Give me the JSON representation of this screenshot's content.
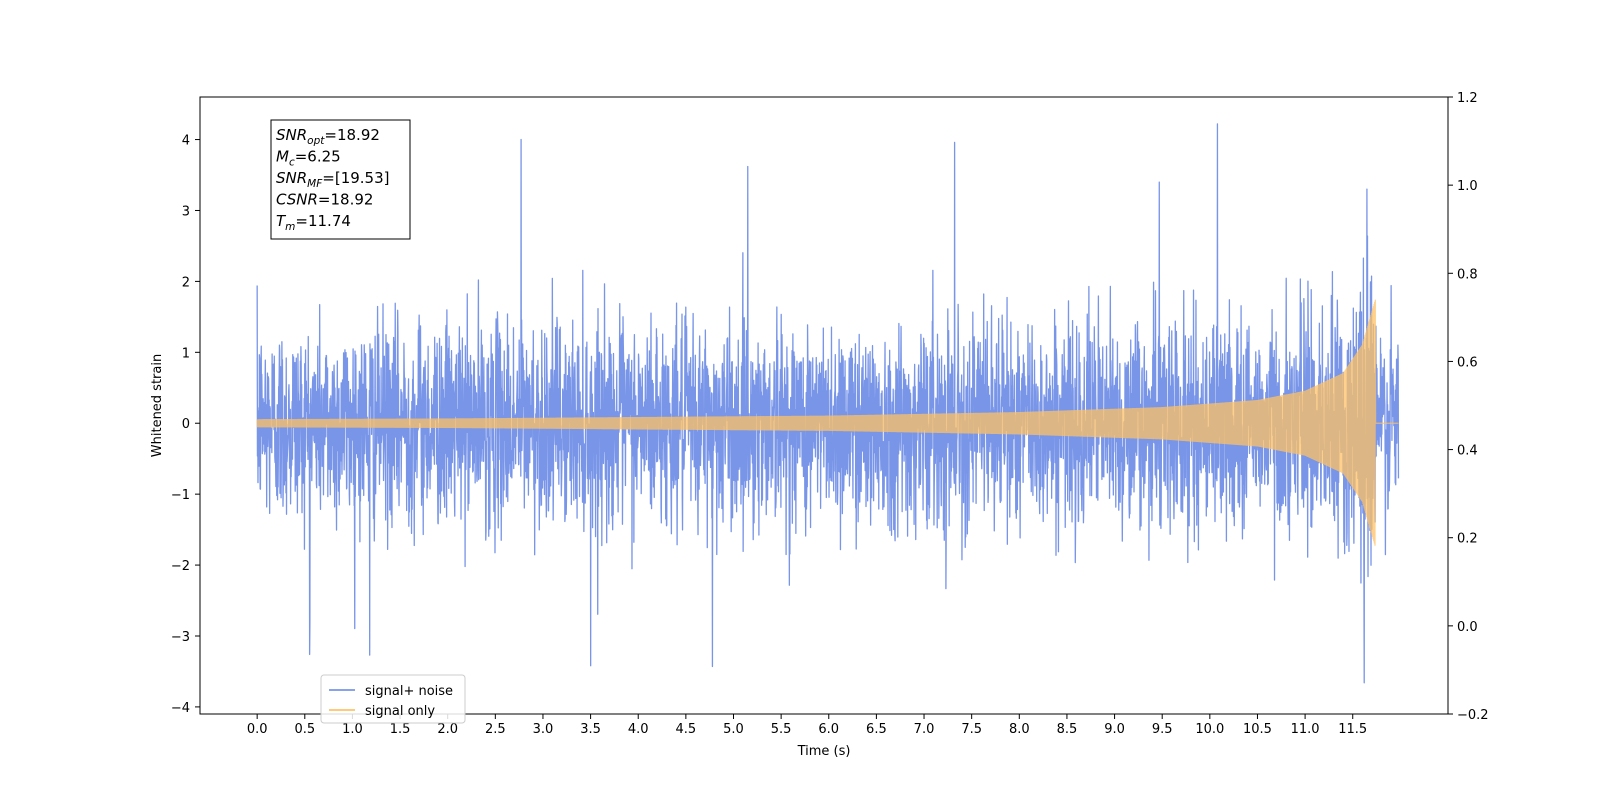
{
  "chart_data": {
    "type": "line",
    "title": "",
    "xlabel": "Time (s)",
    "ylabel": "Whitened strain",
    "xlim": [
      -0.6,
      12.5
    ],
    "ylim": [
      -4.1,
      4.6
    ],
    "ylim_right": [
      -0.2,
      1.2
    ],
    "x_ticks": [
      0.0,
      0.5,
      1.0,
      1.5,
      2.0,
      2.5,
      3.0,
      3.5,
      4.0,
      4.5,
      5.0,
      5.5,
      6.0,
      6.5,
      7.0,
      7.5,
      8.0,
      8.5,
      9.0,
      9.5,
      10.0,
      10.5,
      11.0,
      11.5
    ],
    "x_tick_labels": [
      "0.0",
      "0.5",
      "1.0",
      "1.5",
      "2.0",
      "2.5",
      "3.0",
      "3.5",
      "4.0",
      "4.5",
      "5.0",
      "5.5",
      "6.0",
      "6.5",
      "7.0",
      "7.5",
      "8.0",
      "8.5",
      "9.0",
      "9.5",
      "10.0",
      "10.5",
      "11.0",
      "11.5"
    ],
    "y_ticks": [
      -4,
      -3,
      -2,
      -1,
      0,
      1,
      2,
      3,
      4
    ],
    "y_tick_labels": [
      "−4",
      "−3",
      "−2",
      "−1",
      "0",
      "1",
      "2",
      "3",
      "4"
    ],
    "y_right_ticks": [
      -0.2,
      0.0,
      0.2,
      0.4,
      0.6,
      0.8,
      1.0,
      1.2
    ],
    "y_right_tick_labels": [
      "−0.2",
      "0.0",
      "0.2",
      "0.4",
      "0.6",
      "0.8",
      "1.0",
      "1.2"
    ],
    "grid": false,
    "legend_placement": "lower-left",
    "series": [
      {
        "name": "signal+ noise",
        "color": "#7895e8",
        "t_range": [
          0.0,
          11.98
        ],
        "approx_envelope": [
          -2.0,
          2.0
        ],
        "notable_peaks": [
          {
            "t": 2.77,
            "v": 4.0
          },
          {
            "t": 7.32,
            "v": 3.96
          },
          {
            "t": 10.08,
            "v": 4.22
          },
          {
            "t": 5.15,
            "v": 3.62
          },
          {
            "t": 11.62,
            "v": -3.66
          },
          {
            "t": 3.5,
            "v": -3.42
          },
          {
            "t": 4.78,
            "v": -3.43
          },
          {
            "t": 0.55,
            "v": -3.26
          },
          {
            "t": 1.18,
            "v": -3.27
          },
          {
            "t": 9.47,
            "v": 3.4
          },
          {
            "t": 11.65,
            "v": 3.3
          }
        ]
      },
      {
        "name": "signal only",
        "color": "#ffc266",
        "t_range": [
          0.0,
          11.98
        ],
        "chirp_peak_time": 11.74,
        "peak_amplitude": 1.75,
        "envelope": [
          {
            "t": 0.0,
            "a": 0.05
          },
          {
            "t": 2.0,
            "a": 0.06
          },
          {
            "t": 4.0,
            "a": 0.08
          },
          {
            "t": 6.0,
            "a": 0.1
          },
          {
            "t": 8.0,
            "a": 0.15
          },
          {
            "t": 9.5,
            "a": 0.22
          },
          {
            "t": 10.5,
            "a": 0.32
          },
          {
            "t": 11.0,
            "a": 0.45
          },
          {
            "t": 11.4,
            "a": 0.7
          },
          {
            "t": 11.6,
            "a": 1.1
          },
          {
            "t": 11.74,
            "a": 1.75
          }
        ]
      }
    ],
    "annotation_box": {
      "lines": [
        {
          "main": "SNR",
          "sub": "opt",
          "rest": "=18.92"
        },
        {
          "main": "M",
          "sub": "c",
          "rest": "=6.25"
        },
        {
          "main": "SNR",
          "sub": "MF",
          "rest": "=[19.53]"
        },
        {
          "main": "CSNR",
          "sub": "",
          "rest": "=18.92"
        },
        {
          "main": "T",
          "sub": "m",
          "rest": "=11.74"
        }
      ]
    }
  }
}
